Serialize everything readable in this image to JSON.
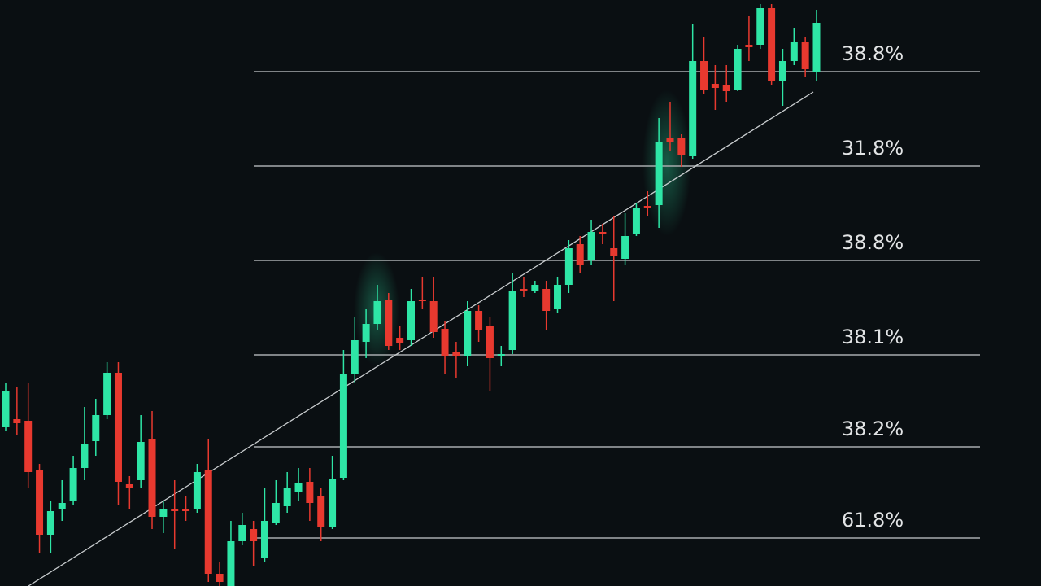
{
  "chart_data": {
    "type": "candlestick",
    "ylim": [
      0,
      720
    ],
    "up_color": "#2ee6a6",
    "down_color": "#e8392f",
    "level_color": "#a7acae",
    "open": [
      195,
      205,
      203,
      142,
      63,
      95,
      105,
      145,
      178,
      210,
      262,
      125,
      130,
      180,
      85,
      95,
      95,
      95,
      142,
      15,
      0,
      55,
      70,
      35,
      78,
      98,
      115,
      128,
      110,
      73,
      133,
      260,
      300,
      322,
      352,
      305,
      302,
      352,
      350,
      316,
      288,
      282,
      338,
      320,
      283,
      290,
      365,
      362,
      365,
      340,
      370,
      420,
      400,
      435,
      415,
      402,
      433,
      467,
      468,
      550,
      550,
      528,
      645,
      617,
      616,
      610,
      665,
      665,
      710,
      620,
      645,
      668,
      632
    ],
    "high": [
      250,
      245,
      250,
      150,
      105,
      130,
      160,
      220,
      230,
      275,
      275,
      135,
      210,
      215,
      105,
      130,
      110,
      150,
      180,
      30,
      80,
      90,
      80,
      120,
      130,
      140,
      145,
      145,
      120,
      160,
      290,
      330,
      340,
      370,
      360,
      320,
      365,
      380,
      380,
      325,
      300,
      350,
      345,
      330,
      295,
      385,
      380,
      375,
      375,
      380,
      425,
      430,
      450,
      445,
      455,
      458,
      470,
      485,
      575,
      595,
      555,
      690,
      675,
      640,
      640,
      665,
      700,
      715,
      715,
      660,
      685,
      675,
      708
    ],
    "low": [
      190,
      185,
      120,
      40,
      40,
      80,
      100,
      130,
      160,
      205,
      100,
      95,
      120,
      70,
      65,
      45,
      80,
      90,
      5,
      0,
      0,
      50,
      25,
      30,
      75,
      90,
      105,
      80,
      55,
      70,
      130,
      250,
      280,
      315,
      290,
      290,
      295,
      340,
      305,
      260,
      255,
      270,
      300,
      240,
      270,
      285,
      355,
      360,
      315,
      335,
      360,
      385,
      395,
      420,
      350,
      395,
      430,
      455,
      440,
      535,
      515,
      525,
      605,
      585,
      595,
      608,
      645,
      660,
      615,
      590,
      640,
      625,
      620
    ],
    "close": [
      240,
      200,
      140,
      63,
      92,
      102,
      145,
      175,
      210,
      262,
      128,
      120,
      177,
      85,
      95,
      92,
      92,
      140,
      15,
      5,
      55,
      75,
      55,
      80,
      102,
      120,
      127,
      102,
      73,
      132,
      260,
      302,
      322,
      350,
      295,
      298,
      350,
      350,
      312,
      282,
      282,
      338,
      315,
      280,
      285,
      362,
      362,
      370,
      338,
      370,
      415,
      395,
      435,
      432,
      405,
      430,
      465,
      464,
      545,
      545,
      530,
      645,
      610,
      612,
      608,
      660,
      662,
      710,
      620,
      645,
      668,
      635,
      692
    ],
    "levels": [
      {
        "value": 632,
        "label": "38.8%"
      },
      {
        "value": 516,
        "label": "31.8%"
      },
      {
        "value": 400,
        "label": "38.8%"
      },
      {
        "value": 284,
        "label": "38.1%"
      },
      {
        "value": 171,
        "label": "38.2%"
      },
      {
        "value": 59,
        "label": "61.8%"
      }
    ]
  }
}
